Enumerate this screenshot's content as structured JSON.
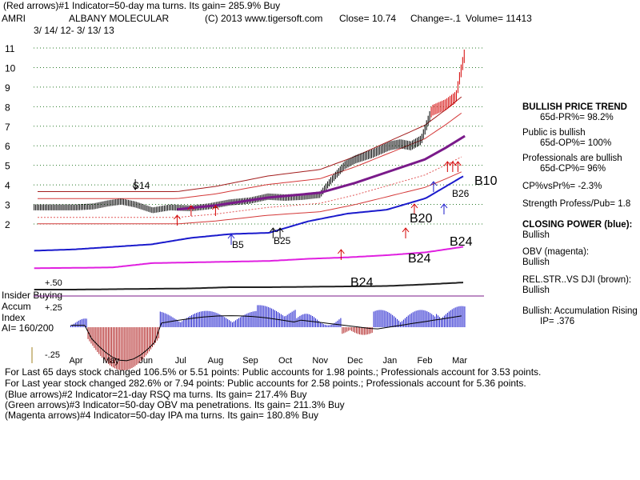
{
  "header": {
    "line1": "(Red arrows)#1 Indicator=50-day ma turns. Its gain= 285.9% Buy",
    "ticker": "AMRI",
    "company": "ALBANY MOLECULAR",
    "copyright": "(C) 2013 www.tigersoft.com",
    "close_label": "Close= 10.74",
    "change_label": "Change=-.1",
    "volume_label": "Volume= 11413",
    "date_range": "3/ 14/ 12- 3/ 13/ 13"
  },
  "left_labels": {
    "insider_buying": "Insider Buying",
    "accum": "Accum",
    "index": "Index",
    "ai": "AI= 160/200"
  },
  "sidebar": {
    "trend_title": "BULLISH PRICE TREND",
    "pr": "65d-PR%= 98.2%",
    "public_title": "Public is bullish",
    "op": "65d-OP%= 100%",
    "prof_title": "Professionals are bullish",
    "cp": "65d-CP%= 96%",
    "cpvspr": "CP%vsPr%= -2.3%",
    "strength": "Strength Profess/Pub= 1.8",
    "cp_title": "CLOSING POWER (blue):",
    "cp_state": "Bullish",
    "obv_title": "OBV (magenta):",
    "obv_state": "Bullish",
    "rs_title": "REL.STR..VS DJI (brown):",
    "rs_state": "Bullish",
    "accum_title": "Bullish: Accumulation Rising",
    "ip": "IP= .376"
  },
  "footer": {
    "line1": "For Last 65 days stock changed 106.5% or 5.51 points: Public accounts for 1.98 points.; Professionals account for 3.53 points.",
    "line2": "For Last year stock changed 282.6% or 7.94 points: Public accounts for 2.58 points.; Professionals account for 5.36 points.",
    "line3": "(Blue arrows)#2 Indicator=21-day RSQ ma turns. Its gain= 217.4% Buy",
    "line4": "(Green arrows)#3 Indicator=50-day OBV ma penetrations. Its gain= 211.3% Buy",
    "line5": "(Magenta arrows)#4 Indicator=50-day IPA ma turns. Its gain= 180.8% Buy"
  },
  "chart_data": {
    "type": "line",
    "title": "ALBANY MOLECULAR (AMRI) 3/14/12 - 3/13/13",
    "months": [
      "Apr",
      "May",
      "Jun",
      "Jul",
      "Aug",
      "Sep",
      "Oct",
      "Nov",
      "Dec",
      "Jan",
      "Feb",
      "Mar"
    ],
    "price_axis": {
      "ticks": [
        2,
        3,
        4,
        5,
        6,
        7,
        8,
        9,
        10,
        11
      ],
      "ylim": [
        1.5,
        11.5
      ]
    },
    "accum_axis": {
      "ticks": [
        "+.50",
        "+.25",
        "-.25"
      ],
      "values": [
        0.5,
        0.25,
        -0.25
      ]
    },
    "price": [
      {
        "m": 0,
        "v": 2.85
      },
      {
        "m": 0.5,
        "v": 2.9
      },
      {
        "m": 0.9,
        "v": 3.05
      },
      {
        "m": 1.3,
        "v": 3.15
      },
      {
        "m": 1.7,
        "v": 3.0
      },
      {
        "m": 2.2,
        "v": 2.7
      },
      {
        "m": 2.7,
        "v": 2.85
      },
      {
        "m": 3.3,
        "v": 2.8
      },
      {
        "m": 3.8,
        "v": 2.9
      },
      {
        "m": 4.4,
        "v": 3.1
      },
      {
        "m": 5.0,
        "v": 3.2
      },
      {
        "m": 5.5,
        "v": 3.4
      },
      {
        "m": 6.0,
        "v": 3.35
      },
      {
        "m": 6.5,
        "v": 3.4
      },
      {
        "m": 7.0,
        "v": 3.5
      },
      {
        "m": 7.3,
        "v": 4.2
      },
      {
        "m": 7.7,
        "v": 5.0
      },
      {
        "m": 8.0,
        "v": 5.3
      },
      {
        "m": 8.5,
        "v": 5.6
      },
      {
        "m": 9.0,
        "v": 6.0
      },
      {
        "m": 9.3,
        "v": 6.1
      },
      {
        "m": 9.6,
        "v": 6.0
      },
      {
        "m": 9.9,
        "v": 6.3
      },
      {
        "m": 10.2,
        "v": 7.8
      },
      {
        "m": 10.6,
        "v": 8.1
      },
      {
        "m": 10.9,
        "v": 8.5
      },
      {
        "m": 11.0,
        "v": 9.5
      },
      {
        "m": 11.15,
        "v": 10.74
      }
    ],
    "ma50": [
      {
        "m": 2.9,
        "v": 2.75
      },
      {
        "m": 4.0,
        "v": 2.95
      },
      {
        "m": 5.5,
        "v": 3.35
      },
      {
        "m": 7.0,
        "v": 3.6
      },
      {
        "m": 8.0,
        "v": 4.1
      },
      {
        "m": 9.0,
        "v": 4.7
      },
      {
        "m": 10.0,
        "v": 5.3
      },
      {
        "m": 10.6,
        "v": 5.9
      },
      {
        "m": 11.15,
        "v": 6.5
      }
    ],
    "series": [
      {
        "name": "Closing Power (blue)",
        "values": [
          0.05,
          0.1,
          0.2,
          0.3,
          0.55,
          0.7,
          0.75,
          1.2,
          1.5,
          1.65,
          2.1,
          3.0
        ]
      },
      {
        "name": "OBV (magenta)",
        "values": [
          0.1,
          0.12,
          0.15,
          0.45,
          0.5,
          0.55,
          0.6,
          0.75,
          0.85,
          1.0,
          1.2,
          1.6
        ]
      },
      {
        "name": "Rel.Str. vs DJI (brown)",
        "values": [
          0.1,
          0.1,
          0.15,
          0.2,
          0.25,
          0.4,
          0.4,
          0.45,
          0.5,
          0.55,
          0.75,
          1.0
        ]
      }
    ],
    "annotations": [
      {
        "text": "S14",
        "m": 2.3,
        "v": 4.05
      },
      {
        "text": "B5",
        "m": 5.6,
        "v": 1.0
      },
      {
        "text": "B25",
        "m": 6.55,
        "v": 1.0
      },
      {
        "text": "B20",
        "m": 9.3,
        "v": 2.25
      },
      {
        "text": "B26",
        "m": 10.6,
        "v": 3.5
      },
      {
        "text": "B10",
        "m": 11.3,
        "v": 4.2
      },
      {
        "text": "B24",
        "m": 10.8,
        "v": 0.92
      },
      {
        "text": "B24",
        "m": 9.9,
        "v": 0.62
      },
      {
        "text": "B24",
        "m": 8.5,
        "v": 0.5
      }
    ]
  }
}
